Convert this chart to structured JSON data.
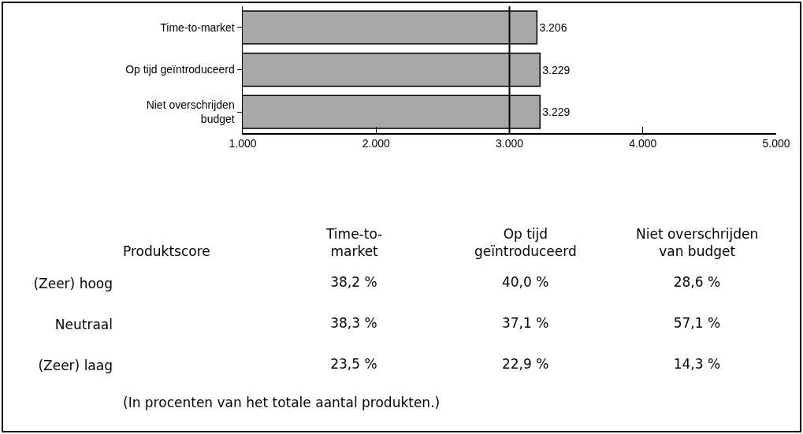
{
  "chart_data": [
    {
      "type": "bar",
      "orientation": "horizontal",
      "categories": [
        "Time-to-market",
        "Op tijd geïntroduceerd",
        "Niet overschrijden\nbudget"
      ],
      "values": [
        3206,
        3229,
        3229
      ],
      "value_labels": [
        "3.206",
        "3.229",
        "3.229"
      ],
      "color": "#a8a8a8",
      "xlim": [
        1000,
        5000
      ],
      "xticks": [
        {
          "value": 1000,
          "label": "1.000"
        },
        {
          "value": 2000,
          "label": "2.000"
        },
        {
          "value": 3000,
          "label": "3.000"
        },
        {
          "value": 4000,
          "label": "4.000"
        },
        {
          "value": 5000,
          "label": "5.000"
        }
      ],
      "ref_lines": [
        {
          "axis": "x",
          "value": 3000,
          "color": "#000000"
        }
      ],
      "grid": false
    },
    {
      "type": "other",
      "ylabel": "Produktscore",
      "categories": [
        "Time-to-\nmarket",
        "Op tijd\ngeïntroduceerd",
        "Niet overschrijden\nvan budget"
      ],
      "y_categories": [
        "(Zeer) hoog",
        "Neutraal",
        "(Zeer) laag"
      ],
      "cell_labels": [
        [
          "38,2 %",
          "40,0 %",
          "28,6 %"
        ],
        [
          "38,3 %",
          "37,1 %",
          "57,1 %"
        ],
        [
          "23,5 %",
          "22,9 %",
          "14,3 %"
        ]
      ],
      "annotations": [
        "(In procenten van het totale aantal produkten.)"
      ]
    }
  ]
}
